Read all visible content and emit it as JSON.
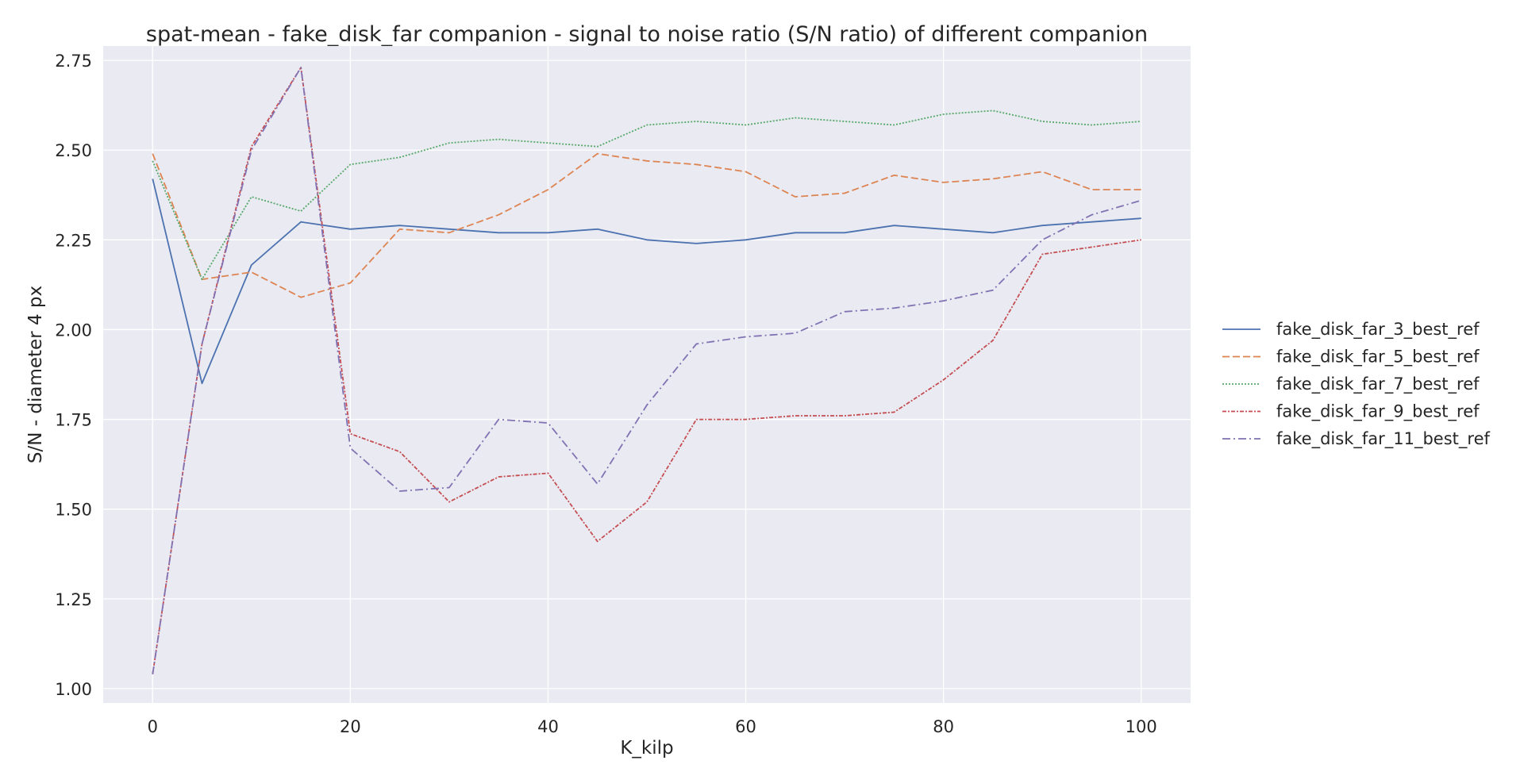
{
  "chart_data": {
    "type": "line",
    "title": "spat-mean - fake_disk_far companion - signal to noise ratio (S/N ratio) of different companion",
    "xlabel": "K_kilp",
    "ylabel": "S/N - diameter 4 px",
    "xlim": [
      -5,
      105
    ],
    "ylim": [
      0.96,
      2.79
    ],
    "xticks": [
      0,
      20,
      40,
      60,
      80,
      100
    ],
    "yticks": [
      1.0,
      1.25,
      1.5,
      1.75,
      2.0,
      2.25,
      2.5,
      2.75
    ],
    "ytick_labels": [
      "1.00",
      "1.25",
      "1.50",
      "1.75",
      "2.00",
      "2.25",
      "2.50",
      "2.75"
    ],
    "grid": true,
    "legend_position": "right outside",
    "x": [
      0,
      5,
      10,
      15,
      20,
      25,
      30,
      35,
      40,
      45,
      50,
      55,
      60,
      65,
      70,
      75,
      80,
      85,
      90,
      95,
      100
    ],
    "series": [
      {
        "name": "fake_disk_far_3_best_ref",
        "color": "#4c72b0",
        "dash": "",
        "values": [
          2.42,
          1.85,
          2.18,
          2.3,
          2.28,
          2.29,
          2.28,
          2.27,
          2.27,
          2.28,
          2.25,
          2.24,
          2.25,
          2.27,
          2.27,
          2.29,
          2.28,
          2.27,
          2.29,
          2.3,
          2.31
        ]
      },
      {
        "name": "fake_disk_far_5_best_ref",
        "color": "#dd8452",
        "dash": "9,4",
        "values": [
          2.49,
          2.14,
          2.16,
          2.09,
          2.13,
          2.28,
          2.27,
          2.32,
          2.39,
          2.49,
          2.47,
          2.46,
          2.44,
          2.37,
          2.38,
          2.43,
          2.41,
          2.42,
          2.44,
          2.39,
          2.39
        ]
      },
      {
        "name": "fake_disk_far_7_best_ref",
        "color": "#55a868",
        "dash": "2,2",
        "values": [
          2.47,
          2.14,
          2.37,
          2.33,
          2.46,
          2.48,
          2.52,
          2.53,
          2.52,
          2.51,
          2.57,
          2.58,
          2.57,
          2.59,
          2.58,
          2.57,
          2.6,
          2.61,
          2.58,
          2.57,
          2.58
        ]
      },
      {
        "name": "fake_disk_far_9_best_ref",
        "color": "#c44e52",
        "dash": "5,2,2,2",
        "values": [
          1.04,
          1.96,
          2.51,
          2.73,
          1.71,
          1.66,
          1.52,
          1.59,
          1.6,
          1.41,
          1.52,
          1.75,
          1.75,
          1.76,
          1.76,
          1.77,
          1.86,
          1.97,
          2.21,
          2.23,
          2.25
        ]
      },
      {
        "name": "fake_disk_far_11_best_ref",
        "color": "#8172b3",
        "dash": "10,4,2,4",
        "values": [
          1.04,
          1.96,
          2.5,
          2.73,
          1.67,
          1.55,
          1.56,
          1.75,
          1.74,
          1.57,
          1.79,
          1.96,
          1.98,
          1.99,
          2.05,
          2.06,
          2.08,
          2.11,
          2.25,
          2.32,
          2.36
        ]
      }
    ]
  }
}
